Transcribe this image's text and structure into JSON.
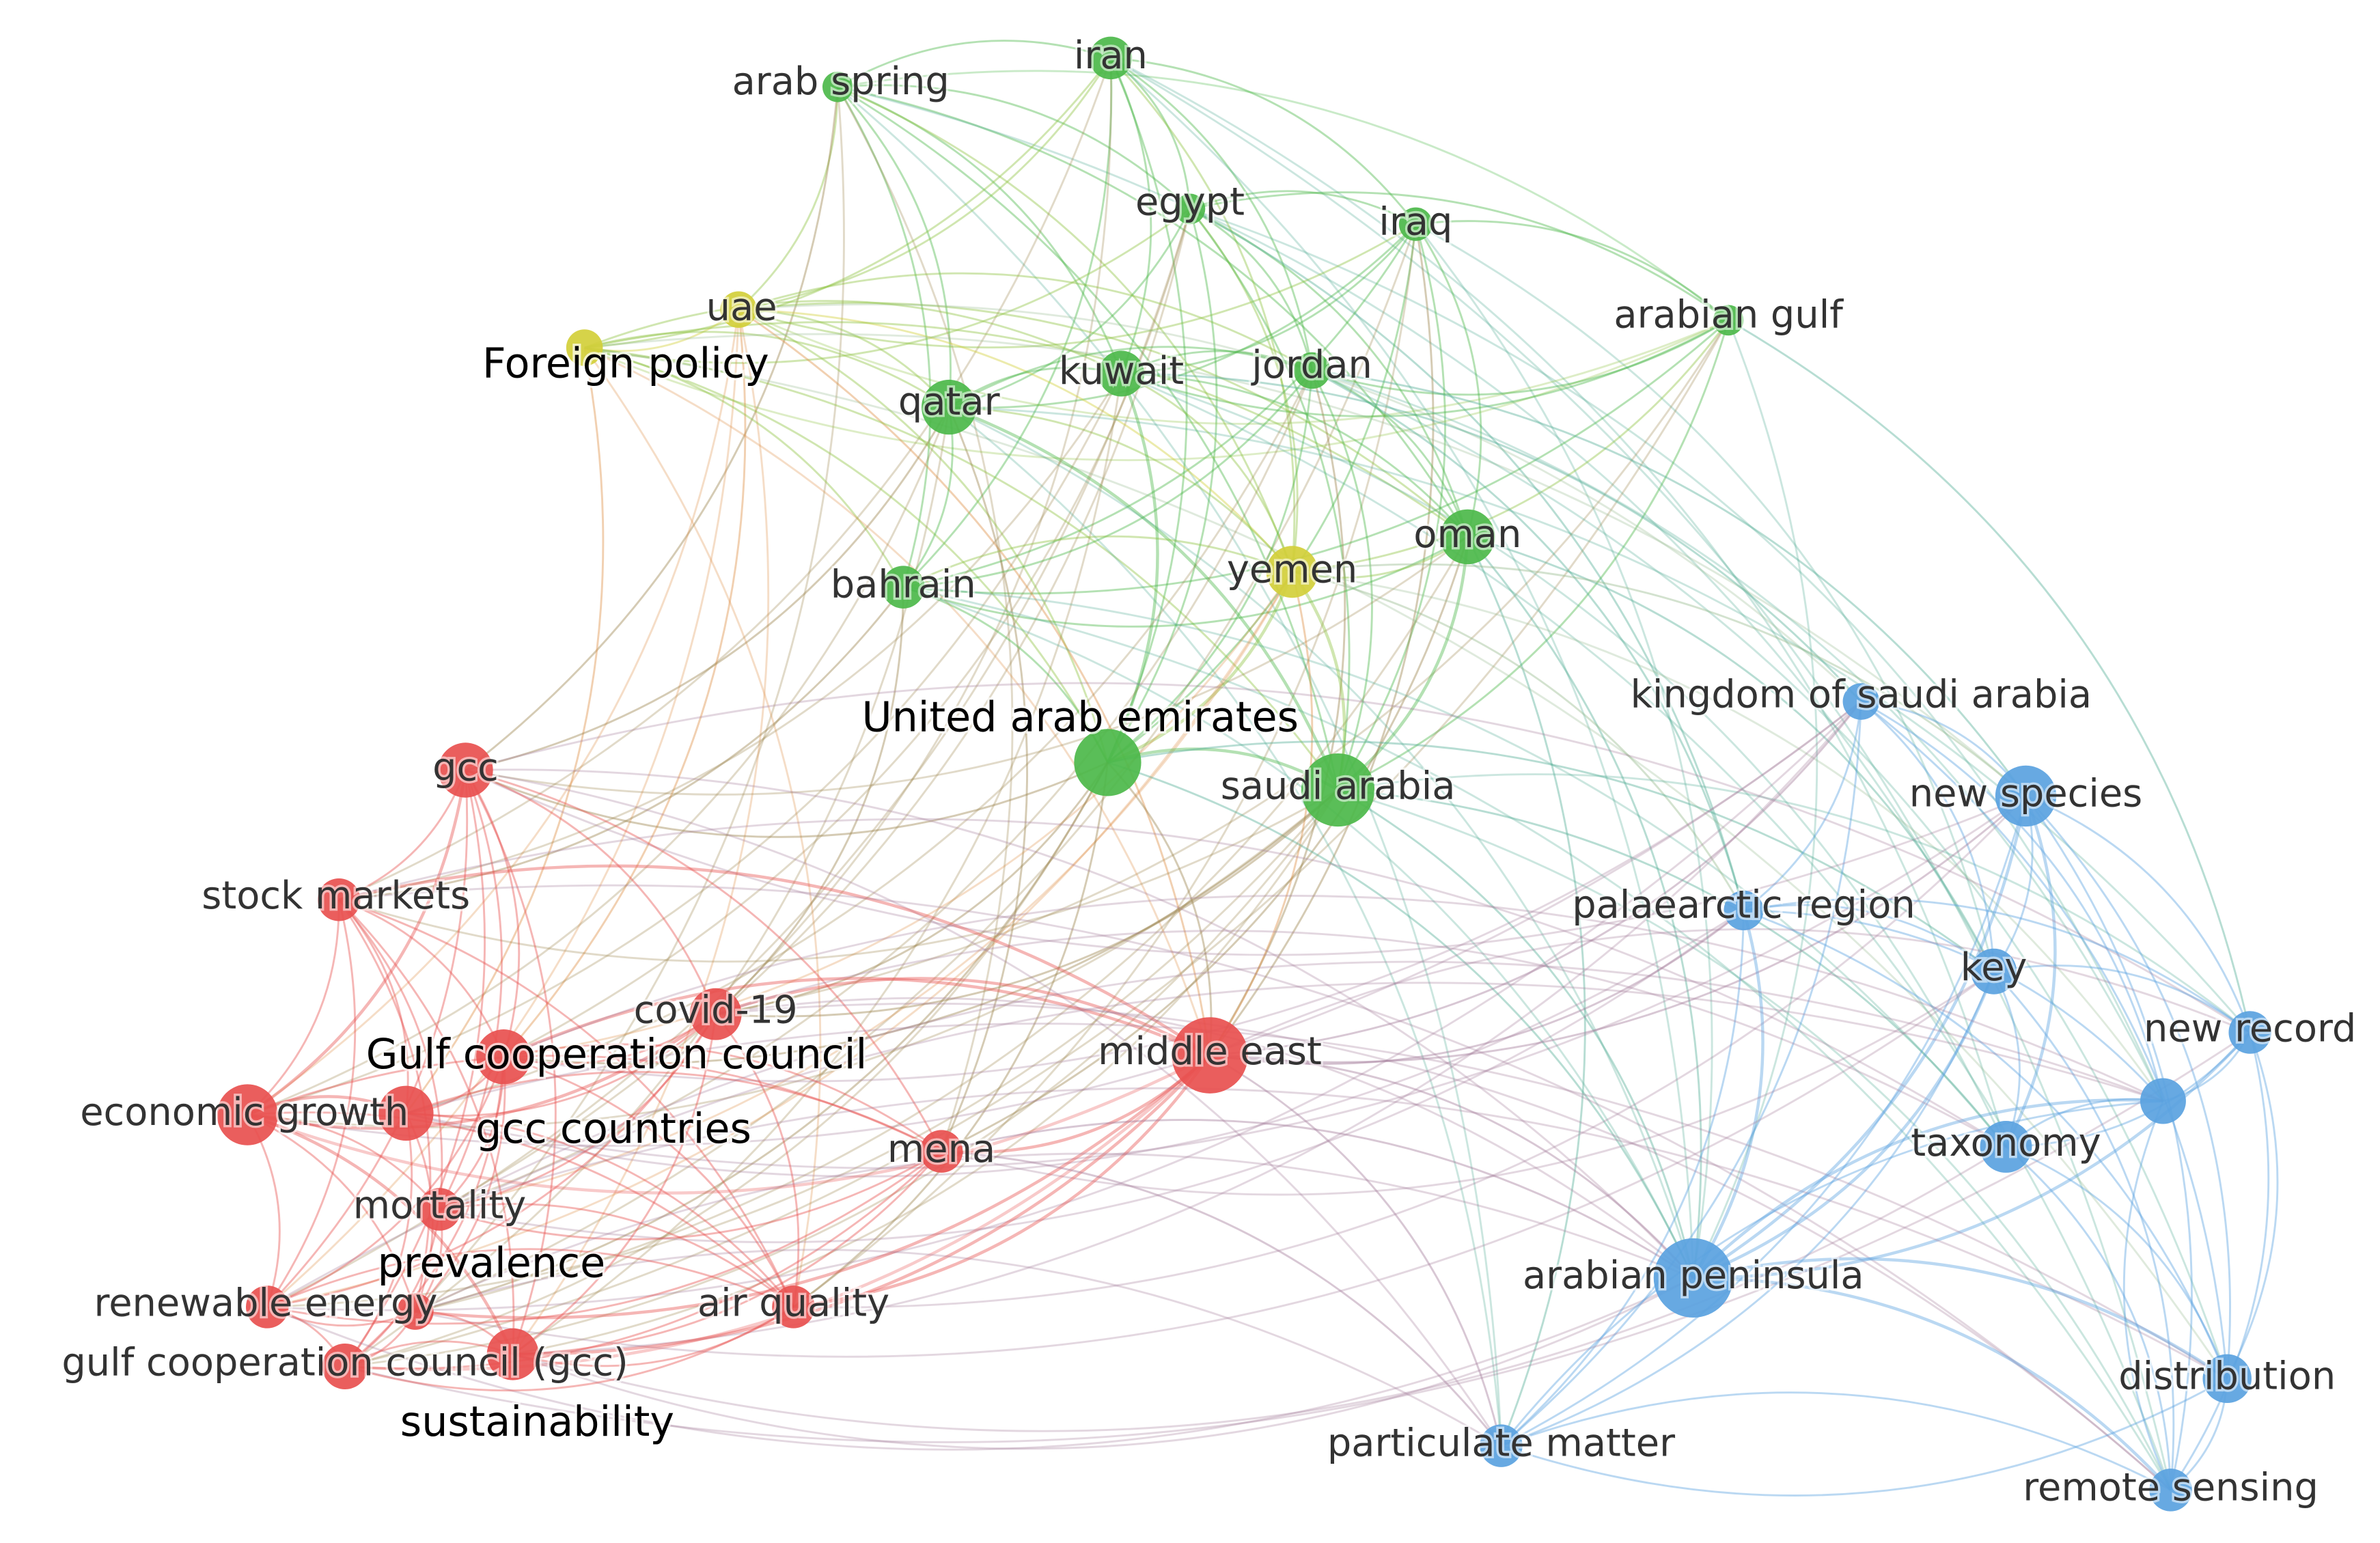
{
  "nodes": [
    {
      "label": "arab spring"
    },
    {
      "label": "iran"
    },
    {
      "label": "egypt"
    },
    {
      "label": "iraq"
    },
    {
      "label": "arabian gulf"
    },
    {
      "label": "uae"
    },
    {
      "label": "Foreign policy"
    },
    {
      "label": "qatar"
    },
    {
      "label": "kuwait"
    },
    {
      "label": "jordan"
    },
    {
      "label": "oman"
    },
    {
      "label": "bahrain"
    },
    {
      "label": "yemen"
    },
    {
      "label": "United arab emirates"
    },
    {
      "label": "saudi arabia"
    },
    {
      "label": "kingdom of saudi arabia"
    },
    {
      "label": "new species"
    },
    {
      "label": "gcc"
    },
    {
      "label": "stock markets"
    },
    {
      "label": "palaearctic region"
    },
    {
      "label": "key"
    },
    {
      "label": "covid-19"
    },
    {
      "label": "Gulf cooperation council"
    },
    {
      "label": "middle east"
    },
    {
      "label": "new record"
    },
    {
      "label": "economic growth"
    },
    {
      "label": "gcc countries"
    },
    {
      "label": "mena"
    },
    {
      "label": "taxonomy"
    },
    {
      "label": "mortality"
    },
    {
      "label": "prevalence"
    },
    {
      "label": "arabian peninsula"
    },
    {
      "label": "renewable energy"
    },
    {
      "label": "air quality"
    },
    {
      "label": "gulf cooperation council (gcc)"
    },
    {
      "label": "sustainability"
    },
    {
      "label": "distribution"
    },
    {
      "label": "particulate matter"
    },
    {
      "label": "remote sensing"
    }
  ]
}
